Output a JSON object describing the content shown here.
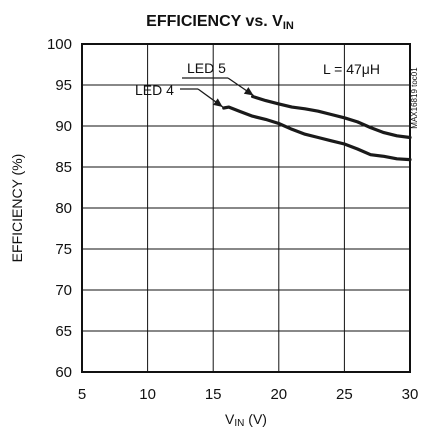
{
  "chart_data": {
    "type": "line",
    "title": {
      "main": "EFFICIENCY vs. V",
      "sub": "IN"
    },
    "xlabel": {
      "main": "V",
      "sub": "IN",
      "unit": " (V)"
    },
    "ylabel": "EFFICIENCY (%)",
    "xlim": [
      5,
      30
    ],
    "ylim": [
      60,
      100
    ],
    "x_ticks": [
      5,
      10,
      15,
      20,
      25,
      30
    ],
    "y_ticks": [
      60,
      65,
      70,
      75,
      80,
      85,
      90,
      95,
      100
    ],
    "grid": true,
    "annotation": "L = 47μH",
    "watermark": "MAX16819 toc01",
    "series": [
      {
        "name": "LED 5",
        "x": [
          18.0,
          19.0,
          20.0,
          21.0,
          22.0,
          23.0,
          24.0,
          25.0,
          26.0,
          27.0,
          28.0,
          29.0,
          30.0
        ],
        "values": [
          93.6,
          93.1,
          92.7,
          92.3,
          92.1,
          91.8,
          91.4,
          91.0,
          90.5,
          89.8,
          89.2,
          88.8,
          88.6
        ]
      },
      {
        "name": "LED 4",
        "x": [
          15.8,
          16.2,
          17.0,
          18.0,
          19.0,
          20.0,
          21.0,
          22.0,
          23.0,
          24.0,
          25.0,
          26.0,
          27.0,
          28.0,
          29.0,
          30.0
        ],
        "values": [
          92.2,
          92.3,
          91.8,
          91.2,
          90.8,
          90.3,
          89.6,
          89.0,
          88.6,
          88.2,
          87.8,
          87.2,
          86.5,
          86.3,
          86.0,
          85.9
        ]
      }
    ]
  },
  "colors": {
    "line": "#1a1a1a",
    "grid": "#111111",
    "text": "#111111"
  }
}
